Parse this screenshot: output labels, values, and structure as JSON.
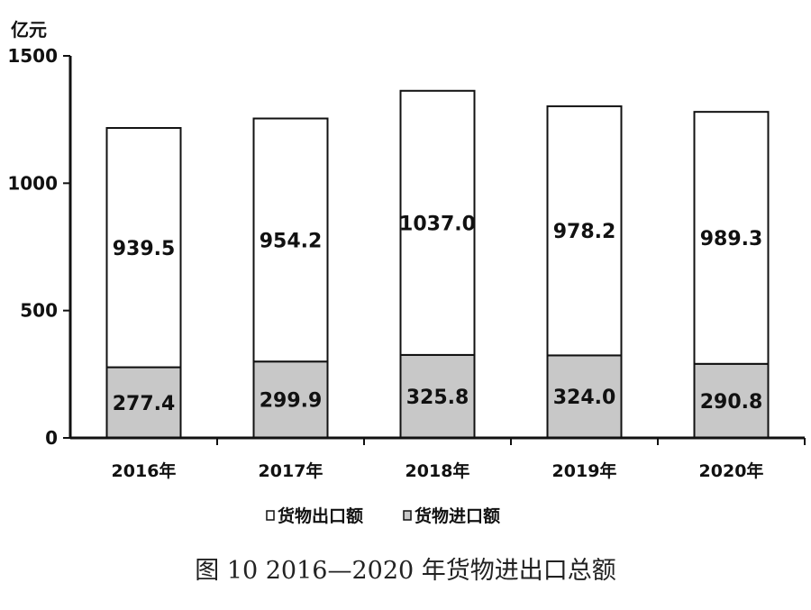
{
  "chart_data": {
    "type": "bar",
    "stacked": true,
    "unit": "亿元",
    "caption": "图 10 2016—2020 年货物进出口总额",
    "categories": [
      "2016年",
      "2017年",
      "2018年",
      "2019年",
      "2020年"
    ],
    "ylim": [
      0,
      1500
    ],
    "yticks": [
      0,
      500,
      1000,
      1500
    ],
    "grid": false,
    "legend_position": "bottom",
    "series": [
      {
        "name": "货物出口额",
        "values": [
          939.5,
          954.2,
          1037.0,
          978.2,
          989.3
        ],
        "labels": [
          "939.5",
          "954.2",
          "1037.0",
          "978.2",
          "989.3"
        ],
        "color": "#ffffff"
      },
      {
        "name": "货物进口额",
        "values": [
          277.4,
          299.9,
          325.8,
          324.0,
          290.8
        ],
        "labels": [
          "277.4",
          "299.9",
          "325.8",
          "324.0",
          "290.8"
        ],
        "color": "#c8c8c8"
      }
    ]
  }
}
